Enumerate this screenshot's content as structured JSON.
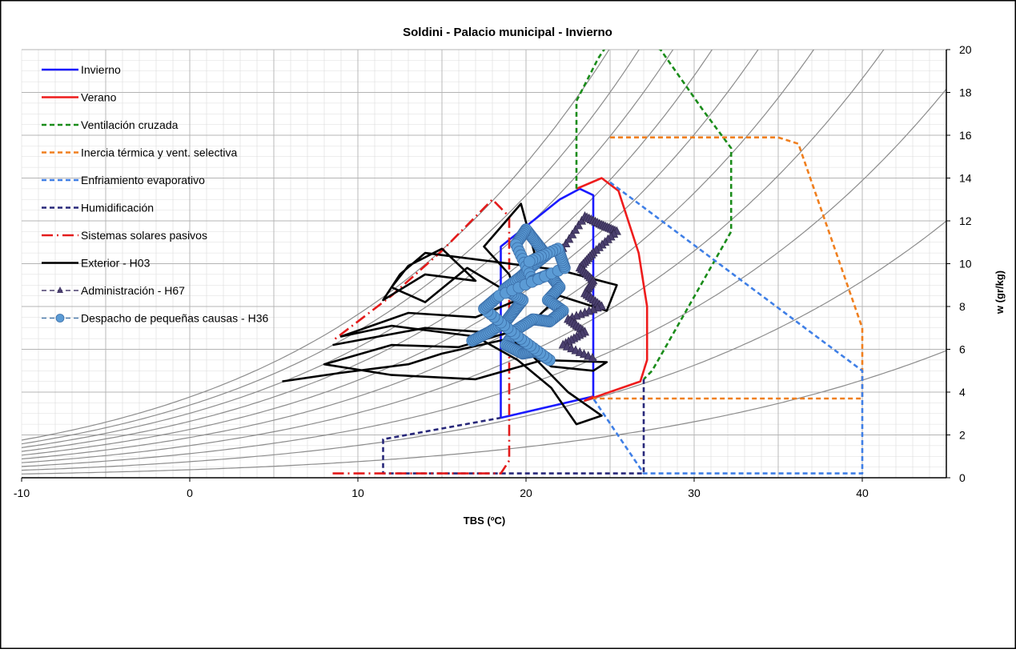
{
  "chart_data": {
    "type": "line",
    "title": "Soldini - Palacio municipal - Invierno",
    "xlabel": "TBS (ºC)",
    "ylabel": "w (gr/kg)",
    "xlim": [
      -10,
      45
    ],
    "ylim": [
      0,
      20
    ],
    "x_ticks": [
      -10,
      0,
      10,
      20,
      30,
      40
    ],
    "y_ticks": [
      0,
      2,
      4,
      6,
      8,
      10,
      12,
      14,
      16,
      18,
      20
    ],
    "y_axis_side": "right",
    "grid": true,
    "legend_position": "top-left",
    "background_curves": "relative humidity curves (10% to 100%)",
    "series": [
      {
        "name": "Invierno",
        "color": "#1a1aff",
        "style": "solid",
        "points": [
          [
            18.5,
            2.8
          ],
          [
            18.5,
            10.8
          ],
          [
            22,
            13.0
          ],
          [
            23.2,
            13.5
          ],
          [
            24.0,
            13.2
          ],
          [
            24.0,
            3.8
          ],
          [
            18.5,
            2.8
          ]
        ]
      },
      {
        "name": "Verano",
        "color": "#ee1c1c",
        "style": "solid",
        "points": [
          [
            23,
            13.5
          ],
          [
            24.5,
            14.0
          ],
          [
            25.5,
            13.4
          ],
          [
            26.7,
            10.5
          ],
          [
            27.2,
            8.0
          ],
          [
            27.2,
            5.5
          ],
          [
            26.8,
            4.5
          ],
          [
            23.5,
            3.6
          ],
          [
            24,
            3.8
          ]
        ]
      },
      {
        "name": "Ventilación cruzada",
        "color": "#1a8c1a",
        "style": "dashed",
        "points": [
          [
            23,
            13.5
          ],
          [
            23,
            17.6
          ],
          [
            24.3,
            19.6
          ],
          [
            25.5,
            21.0
          ],
          [
            28,
            20.0
          ],
          [
            30.5,
            17.2
          ],
          [
            32.2,
            15.4
          ],
          [
            32.2,
            11.5
          ],
          [
            27.5,
            5.0
          ],
          [
            27,
            4.6
          ]
        ]
      },
      {
        "name": "Inercia térmica y vent. selectiva",
        "color": "#f07f1e",
        "style": "dashed",
        "points": [
          [
            25,
            15.9
          ],
          [
            35,
            15.9
          ],
          [
            36.2,
            15.6
          ],
          [
            40,
            7.0
          ],
          [
            40,
            3.7
          ],
          [
            24,
            3.7
          ]
        ]
      },
      {
        "name": "Enfriamiento evaporativo",
        "color": "#3f7fe6",
        "style": "dashed",
        "points": [
          [
            25,
            13.8
          ],
          [
            40,
            5.0
          ],
          [
            40,
            0.2
          ],
          [
            27,
            0.2
          ],
          [
            24,
            3.7
          ]
        ]
      },
      {
        "name": "Humidificación",
        "color": "#28287a",
        "style": "dashed",
        "points": [
          [
            27,
            4.6
          ],
          [
            27,
            0.2
          ],
          [
            11.5,
            0.2
          ],
          [
            11.5,
            1.8
          ],
          [
            18.5,
            2.8
          ]
        ]
      },
      {
        "name": "Sistemas solares pasivos",
        "color": "#e31b1b",
        "style": "dashdot",
        "points": [
          [
            8.5,
            0.2
          ],
          [
            18.5,
            0.2
          ],
          [
            19,
            0.8
          ],
          [
            19,
            12.2
          ],
          [
            18,
            13.0
          ],
          [
            15,
            10.6
          ],
          [
            12,
            8.5
          ],
          [
            8.5,
            6.4
          ]
        ]
      },
      {
        "name": "Exterior - H03",
        "color": "#000000",
        "style": "solid",
        "points": [
          [
            5.5,
            4.5
          ],
          [
            9,
            4.9
          ],
          [
            13,
            5.3
          ],
          [
            15,
            5.8
          ],
          [
            19,
            6.5
          ],
          [
            21.5,
            5.2
          ],
          [
            24,
            5.0
          ],
          [
            24.8,
            5.4
          ],
          [
            21,
            5.5
          ],
          [
            17,
            4.6
          ],
          [
            12,
            4.8
          ],
          [
            8,
            5.3
          ],
          [
            12,
            6.2
          ],
          [
            16,
            6.1
          ],
          [
            19,
            6.8
          ],
          [
            22.5,
            4.0
          ],
          [
            24.5,
            2.9
          ],
          [
            23,
            2.5
          ],
          [
            21.5,
            4.2
          ],
          [
            19.5,
            5.5
          ],
          [
            17,
            6.6
          ],
          [
            12,
            7.1
          ],
          [
            9,
            6.6
          ],
          [
            13,
            7.7
          ],
          [
            17,
            7.5
          ],
          [
            19.5,
            8.3
          ],
          [
            19,
            9.5
          ],
          [
            17.5,
            10.8
          ],
          [
            19.7,
            12.8
          ],
          [
            20.5,
            10.5
          ],
          [
            19.5,
            8.4
          ],
          [
            16.5,
            9.8
          ],
          [
            14,
            8.2
          ],
          [
            12,
            8.9
          ],
          [
            13,
            9.9
          ],
          [
            15,
            10.7
          ],
          [
            17,
            9.2
          ],
          [
            14,
            9.5
          ],
          [
            11.5,
            8.3
          ],
          [
            12.5,
            9.5
          ],
          [
            14,
            10.5
          ],
          [
            22,
            9.7
          ],
          [
            25.4,
            9.0
          ],
          [
            24.8,
            7.8
          ],
          [
            22,
            8.5
          ],
          [
            20,
            7.0
          ],
          [
            17.5,
            6.8
          ],
          [
            14,
            7.0
          ],
          [
            8.5,
            6.2
          ]
        ]
      },
      {
        "name": "Administración - H67",
        "color": "#4a3f6e",
        "style": "dashed-triangle",
        "points": [
          [
            22,
            10.5
          ],
          [
            23.5,
            12.2
          ],
          [
            24.5,
            11.8
          ],
          [
            25.4,
            11.5
          ],
          [
            24,
            10.5
          ],
          [
            23.2,
            9.8
          ],
          [
            24.0,
            9.2
          ],
          [
            23.5,
            8.6
          ],
          [
            24.5,
            8.0
          ],
          [
            22.5,
            7.4
          ],
          [
            23.5,
            6.8
          ],
          [
            22.2,
            6.2
          ],
          [
            24.2,
            5.5
          ]
        ]
      },
      {
        "name": "Despacho de pequeñas causas - H36",
        "color": "#5b9bd5",
        "style": "dashed-circle",
        "points": [
          [
            16.8,
            6.4
          ],
          [
            17.8,
            6.8
          ],
          [
            18.8,
            7.3
          ],
          [
            19.3,
            7.8
          ],
          [
            19.8,
            8.3
          ],
          [
            18.7,
            8.8
          ],
          [
            19.7,
            9.4
          ],
          [
            20.4,
            9.9
          ],
          [
            21.2,
            10.4
          ],
          [
            20.6,
            11.0
          ],
          [
            20.0,
            11.6
          ],
          [
            19.4,
            10.9
          ],
          [
            20.4,
            9.2
          ],
          [
            21.4,
            9.5
          ],
          [
            22.0,
            8.9
          ],
          [
            21.3,
            8.3
          ],
          [
            22.2,
            7.8
          ],
          [
            21.4,
            7.3
          ],
          [
            20.4,
            7.4
          ],
          [
            19.4,
            6.9
          ],
          [
            18.8,
            6.2
          ],
          [
            19.8,
            5.8
          ],
          [
            20.6,
            5.9
          ],
          [
            21.4,
            5.5
          ],
          [
            19.5,
            6.6
          ],
          [
            17.5,
            7.9
          ],
          [
            18.4,
            8.5
          ],
          [
            22.3,
            9.8
          ],
          [
            21.9,
            10.7
          ],
          [
            20.2,
            10.1
          ]
        ]
      }
    ]
  }
}
